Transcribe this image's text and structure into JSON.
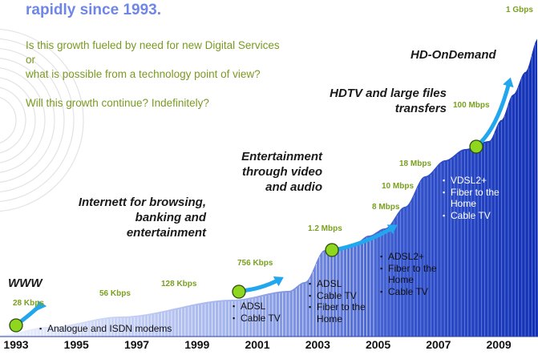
{
  "title": "rapidly since 1993.",
  "questions": [
    "Is this growth fueled by need for new Digital Services",
    "or",
    "what is possible from a technology point of view?",
    "Will this growth continue? Indefinitely?"
  ],
  "eras": [
    {
      "id": "www",
      "text": "WWW"
    },
    {
      "id": "internet",
      "text": "Internett for browsing, banking and entertainment"
    },
    {
      "id": "entertainment",
      "text": "Entertainment through video and audio"
    },
    {
      "id": "hdtv",
      "text": "HDTV and large files transfers"
    },
    {
      "id": "hdod",
      "text": "HD-OnDemand"
    }
  ],
  "technologies": [
    {
      "id": "analogue",
      "items": [
        "Analogue and ISDN modems"
      ]
    },
    {
      "id": "adsl-cable",
      "items": [
        "ADSL",
        "Cable TV"
      ]
    },
    {
      "id": "adsl-fiber",
      "items": [
        "ADSL",
        "Cable TV",
        "Fiber to the Home"
      ]
    },
    {
      "id": "adsl2",
      "items": [
        "ADSL2+",
        "Fiber to the Home",
        "Cable TV"
      ]
    },
    {
      "id": "vdsl2",
      "items": [
        "VDSL2+",
        "Fiber to the Home",
        "Cable TV"
      ]
    }
  ],
  "colors": {
    "title": "#6f86e6",
    "question": "#7a9a22",
    "speed_label": "#7aa01f",
    "area_dark": "#1633b8",
    "area_light": "#e9eefc",
    "arrow": "#22a6ee",
    "milestone": "#8fd61f"
  },
  "chart_data": {
    "type": "area",
    "title": "",
    "xlabel": "",
    "ylabel": "",
    "x_ticks": [
      "1993",
      "1995",
      "1997",
      "1999",
      "2001",
      "2003",
      "2005",
      "2007",
      "2009"
    ],
    "xlim": [
      1993,
      2010.3
    ],
    "y_scale": "log",
    "speed_labels": [
      {
        "label": "28 Kbps",
        "year": 1993.0
      },
      {
        "label": "56 Kbps",
        "year": 1995.5
      },
      {
        "label": "128 Kbps",
        "year": 1998.3
      },
      {
        "label": "756 Kbps",
        "year": 2001.0
      },
      {
        "label": "1.2 Mbps",
        "year": 2002.8
      },
      {
        "label": "8 Mbps",
        "year": 2005.2
      },
      {
        "label": "10 Mbps",
        "year": 2005.6
      },
      {
        "label": "18 Mbps",
        "year": 2006.1
      },
      {
        "label": "100 Mbps",
        "year": 2007.4
      },
      {
        "label": "1 Gbps",
        "year": 2009.3
      }
    ],
    "milestones": [
      {
        "year": 1993.0,
        "level": "28 Kbps"
      },
      {
        "year": 2000.5,
        "level": "756 Kbps"
      },
      {
        "year": 2003.7,
        "level": "1.2 Mbps"
      },
      {
        "year": 2007.7,
        "level": "100 Mbps"
      }
    ]
  }
}
